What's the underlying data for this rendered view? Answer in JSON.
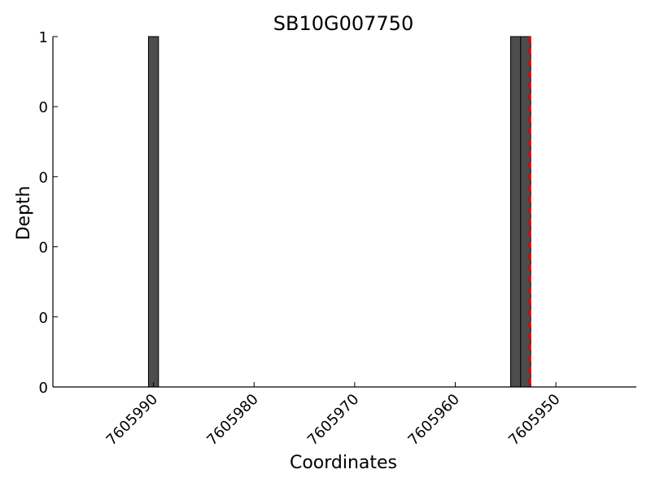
{
  "chart_data": {
    "type": "bar",
    "title": "SB10G007750",
    "xlabel": "Coordinates",
    "ylabel": "Depth",
    "xlim": [
      7606000,
      7605942
    ],
    "ylim": [
      0,
      1
    ],
    "x_ticks": [
      7605990,
      7605980,
      7605970,
      7605960,
      7605950
    ],
    "x_tick_labels": [
      "7605990",
      "7605980",
      "7605970",
      "7605960",
      "7605950"
    ],
    "y_ticks": [
      0,
      0.2,
      0.4,
      0.6,
      0.8,
      1
    ],
    "y_tick_labels": [
      "0",
      "0",
      "0",
      "0",
      "0",
      "1"
    ],
    "bar_width": 1,
    "bars": [
      {
        "x": 7605990,
        "value": 1
      },
      {
        "x": 7605954,
        "value": 1
      },
      {
        "x": 7605953,
        "value": 1
      }
    ],
    "marker_line": {
      "x": 7605952.6,
      "style": "dashed",
      "color": "#e00000"
    },
    "bar_color": "#4d4d4d",
    "grid": false
  }
}
